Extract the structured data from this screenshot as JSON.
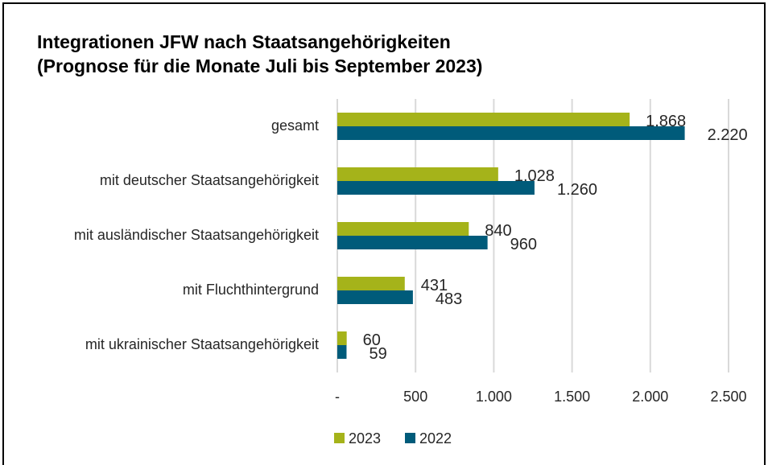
{
  "chart_data": {
    "type": "barh",
    "title": "Integrationen JFW nach Staatsangehörigkeiten",
    "subtitle": "(Prognose für die Monate Juli bis September 2023)",
    "categories": [
      "gesamt",
      "mit deutscher Staatsangehörigkeit",
      "mit ausländischer Staatsangehörigkeit",
      "mit Fluchthintergrund",
      "mit ukrainischer Staatsangehörigkeit"
    ],
    "series": [
      {
        "name": "2023",
        "color": "#a5b31a",
        "values": [
          1868,
          1028,
          840,
          431,
          60
        ],
        "value_labels": [
          "1.868",
          "1.028",
          "840",
          "431",
          "60"
        ]
      },
      {
        "name": "2022",
        "color": "#005b7a",
        "values": [
          2220,
          1260,
          960,
          483,
          59
        ],
        "value_labels": [
          "2.220",
          "1.260",
          "960",
          "483",
          "59"
        ]
      }
    ],
    "xlim": [
      0,
      2500
    ],
    "xticks": [
      {
        "value": 0,
        "label": "-"
      },
      500,
      {
        "value": 1000,
        "label": "1.000"
      },
      {
        "value": 1500,
        "label": "1.500"
      },
      {
        "value": 2000,
        "label": "2.000"
      },
      {
        "value": 2500,
        "label": "2.500"
      }
    ],
    "grid": true,
    "legend": "bottom"
  }
}
